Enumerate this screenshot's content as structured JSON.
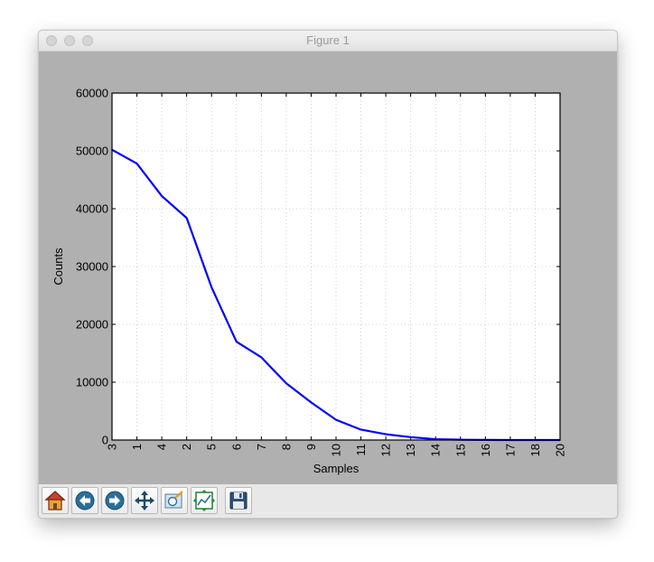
{
  "window": {
    "title": "Figure 1"
  },
  "toolbar": {
    "buttons": [
      {
        "name": "home-button",
        "icon": "home-icon"
      },
      {
        "name": "back-button",
        "icon": "back-arrow-icon"
      },
      {
        "name": "forward-button",
        "icon": "forward-arrow-icon"
      },
      {
        "name": "pan-button",
        "icon": "move-arrows-icon"
      },
      {
        "name": "zoom-button",
        "icon": "zoom-rect-icon"
      },
      {
        "name": "subplots-button",
        "icon": "subplots-config-icon"
      },
      {
        "name": "save-button",
        "icon": "floppy-disk-icon"
      }
    ]
  },
  "chart_data": {
    "type": "line",
    "categories": [
      "3",
      "1",
      "4",
      "2",
      "5",
      "6",
      "7",
      "8",
      "9",
      "10",
      "11",
      "12",
      "13",
      "14",
      "15",
      "16",
      "17",
      "18",
      "20"
    ],
    "values": [
      50200,
      47800,
      42200,
      38400,
      26400,
      17000,
      14300,
      9800,
      6500,
      3500,
      1800,
      1000,
      500,
      150,
      50,
      20,
      5,
      2,
      0
    ],
    "xlabel": "Samples",
    "ylabel": "Counts",
    "ylim": [
      0,
      60000
    ],
    "yticks": [
      "0",
      "10000",
      "20000",
      "30000",
      "40000",
      "50000",
      "60000"
    ],
    "grid": true,
    "line_color": "#0000ff",
    "background": "#ffffff"
  }
}
